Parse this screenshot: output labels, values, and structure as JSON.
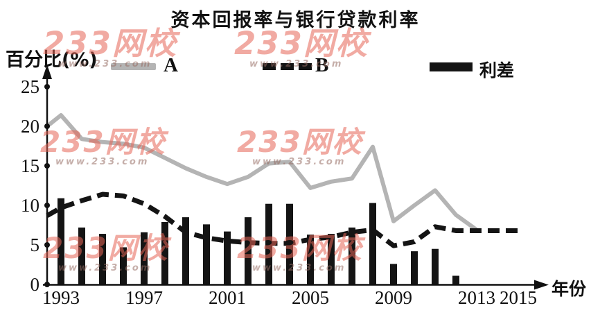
{
  "title": "资本回报率与银行贷款利率",
  "y_axis_title": "百分比(%)",
  "x_axis_title": "年份",
  "legend": {
    "a_label": "A",
    "b_label": "B",
    "spread_label": "利差"
  },
  "watermark": {
    "text": "233网校",
    "subtext": "www.233.com"
  },
  "colors": {
    "line_a": "#b4b4b4",
    "line_b": "#141414",
    "bar": "#141414",
    "axis": "#111111",
    "watermark": "rgba(230,100,85,0.55)"
  },
  "chart_data": {
    "type": "line+bar combo",
    "title": "资本回报率与银行贷款利率",
    "xlabel": "年份",
    "ylabel": "百分比(%)",
    "x_tick_labels": [
      "1993",
      "1997",
      "2001",
      "2005",
      "2009",
      "2013",
      "2015"
    ],
    "y_ticks": [
      0,
      5,
      10,
      15,
      20,
      25
    ],
    "ylim": [
      0,
      27
    ],
    "grid": false,
    "legend_position": "top",
    "series": [
      {
        "name": "A",
        "type": "line",
        "style": "solid",
        "color": "#b4b4b4",
        "axis_start_value": 20,
        "years": [
          1993,
          1994,
          1995,
          1996,
          1997,
          1998,
          1999,
          2000,
          2001,
          2002,
          2003,
          2004,
          2005,
          2006,
          2007,
          2008,
          2009,
          2010,
          2011,
          2012,
          2013
        ],
        "values": [
          21.4,
          18.4,
          18.0,
          17.8,
          17.3,
          16.0,
          14.7,
          13.6,
          12.7,
          13.6,
          15.3,
          15.5,
          12.2,
          13.0,
          13.4,
          17.4,
          8.0,
          10.0,
          11.9,
          8.8,
          6.9
        ]
      },
      {
        "name": "B",
        "type": "line",
        "style": "dashed",
        "color": "#141414",
        "axis_start_value": 8.7,
        "years": [
          1993,
          1994,
          1995,
          1996,
          1997,
          1998,
          1999,
          2000,
          2001,
          2002,
          2003,
          2004,
          2005,
          2006,
          2007,
          2008,
          2009,
          2010,
          2011,
          2012,
          2013,
          2014,
          2015
        ],
        "values": [
          9.7,
          10.6,
          11.4,
          11.2,
          10.2,
          8.6,
          6.6,
          5.9,
          5.5,
          5.3,
          5.2,
          5.2,
          5.7,
          6.0,
          6.6,
          6.9,
          4.9,
          5.4,
          7.3,
          6.8,
          6.8,
          6.8,
          6.8
        ]
      },
      {
        "name": "利差",
        "type": "bar",
        "color": "#141414",
        "years": [
          1993,
          1994,
          1995,
          1996,
          1997,
          1998,
          1999,
          2000,
          2001,
          2002,
          2003,
          2004,
          2005,
          2006,
          2007,
          2008,
          2009,
          2010,
          2011,
          2012
        ],
        "values": [
          10.9,
          7.2,
          6.4,
          4.7,
          6.6,
          7.9,
          8.5,
          7.6,
          6.7,
          8.5,
          10.2,
          10.2,
          6.3,
          6.4,
          7.2,
          10.3,
          2.6,
          4.2,
          4.5,
          1.1
        ]
      }
    ]
  }
}
